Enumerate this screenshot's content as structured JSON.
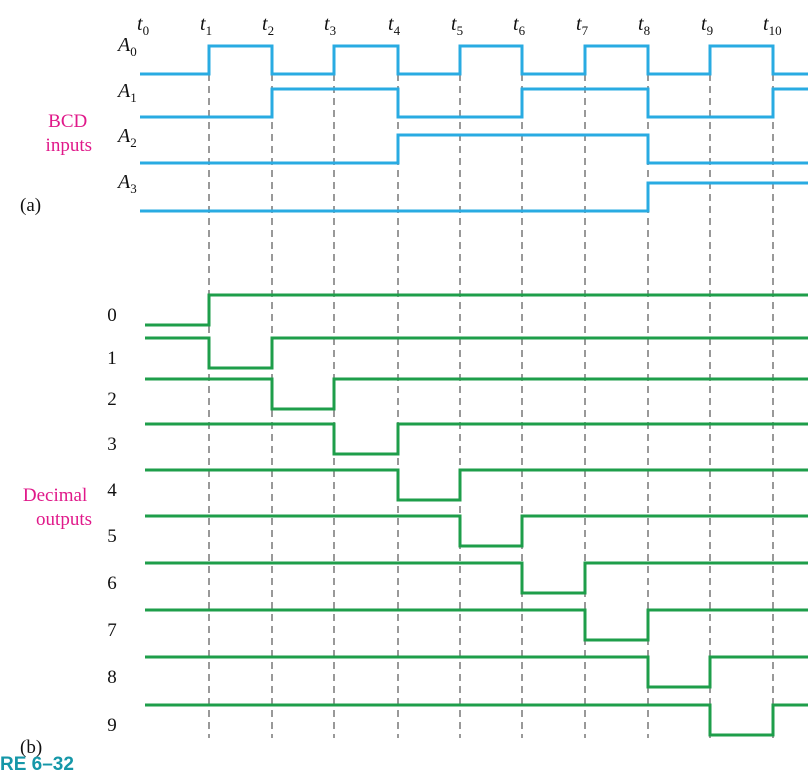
{
  "colors": {
    "input_wave": "#29abe2",
    "output_wave": "#1e9e4a",
    "group_label": "#e0198a",
    "figure_label": "#1597a8"
  },
  "time_marks": [
    {
      "name": "t",
      "sub": "0"
    },
    {
      "name": "t",
      "sub": "1"
    },
    {
      "name": "t",
      "sub": "2"
    },
    {
      "name": "t",
      "sub": "3"
    },
    {
      "name": "t",
      "sub": "4"
    },
    {
      "name": "t",
      "sub": "5"
    },
    {
      "name": "t",
      "sub": "6"
    },
    {
      "name": "t",
      "sub": "7"
    },
    {
      "name": "t",
      "sub": "8"
    },
    {
      "name": "t",
      "sub": "9"
    },
    {
      "name": "t",
      "sub": "10"
    }
  ],
  "inputs_label_line1": "BCD",
  "inputs_label_line2": "inputs",
  "outputs_label_line1": "Decimal",
  "outputs_label_line2": "outputs",
  "part_a": "(a)",
  "part_b": "(b)",
  "figure_label": "RE 6–32",
  "bcd_inputs": [
    {
      "name": "A",
      "sub": "0",
      "levels": [
        0,
        1,
        0,
        1,
        0,
        1,
        0,
        1,
        0,
        1,
        0
      ]
    },
    {
      "name": "A",
      "sub": "1",
      "levels": [
        0,
        0,
        1,
        1,
        0,
        0,
        1,
        1,
        0,
        0,
        1
      ]
    },
    {
      "name": "A",
      "sub": "2",
      "levels": [
        0,
        0,
        0,
        0,
        1,
        1,
        1,
        1,
        0,
        0,
        0
      ]
    },
    {
      "name": "A",
      "sub": "3",
      "levels": [
        0,
        0,
        0,
        0,
        0,
        0,
        0,
        0,
        1,
        1,
        1
      ]
    }
  ],
  "decimal_outputs": [
    {
      "label": "0",
      "levels": [
        0,
        1,
        1,
        1,
        1,
        1,
        1,
        1,
        1,
        1,
        1
      ]
    },
    {
      "label": "1",
      "levels": [
        1,
        0,
        1,
        1,
        1,
        1,
        1,
        1,
        1,
        1,
        1
      ]
    },
    {
      "label": "2",
      "levels": [
        1,
        1,
        0,
        1,
        1,
        1,
        1,
        1,
        1,
        1,
        1
      ]
    },
    {
      "label": "3",
      "levels": [
        1,
        1,
        1,
        0,
        1,
        1,
        1,
        1,
        1,
        1,
        1
      ]
    },
    {
      "label": "4",
      "levels": [
        1,
        1,
        1,
        1,
        0,
        1,
        1,
        1,
        1,
        1,
        1
      ]
    },
    {
      "label": "5",
      "levels": [
        1,
        1,
        1,
        1,
        1,
        0,
        1,
        1,
        1,
        1,
        1
      ]
    },
    {
      "label": "6",
      "levels": [
        1,
        1,
        1,
        1,
        1,
        1,
        0,
        1,
        1,
        1,
        1
      ]
    },
    {
      "label": "7",
      "levels": [
        1,
        1,
        1,
        1,
        1,
        1,
        1,
        0,
        1,
        1,
        1
      ]
    },
    {
      "label": "8",
      "levels": [
        1,
        1,
        1,
        1,
        1,
        1,
        1,
        1,
        0,
        1,
        1
      ]
    },
    {
      "label": "9",
      "levels": [
        1,
        1,
        1,
        1,
        1,
        1,
        1,
        1,
        1,
        0,
        1
      ]
    }
  ]
}
